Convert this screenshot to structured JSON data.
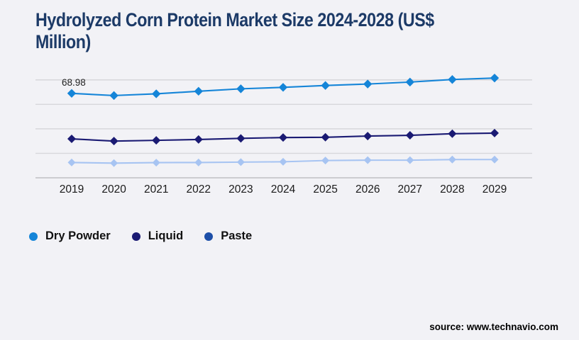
{
  "title": {
    "line1": "Hydrolyzed Corn Protein Market Size 2024-2028 (US$",
    "line2": "Million)"
  },
  "source": {
    "text": "source: www.technavio.com"
  },
  "colors": {
    "background": "#f2f2f6",
    "title": "#1c3a67",
    "gridline": "#d7d7db",
    "axis_line": "#bfbfc4",
    "tick_label": "#1a1a1a",
    "annotation": "#222222"
  },
  "chart_data": {
    "type": "line",
    "title": "Hydrolyzed Corn Protein Market Size 2024-2028 (US$ Million)",
    "unit": "US$ Million",
    "categories": [
      "2019",
      "2020",
      "2021",
      "2022",
      "2023",
      "2024",
      "2025",
      "2026",
      "2027",
      "2028",
      "2029"
    ],
    "ylim": [
      0,
      80
    ],
    "gridline_values": [
      0,
      20,
      40,
      60,
      80
    ],
    "grid_on": true,
    "legend_position": "bottom-left",
    "marker": "diamond",
    "series": [
      {
        "name": "Dry Powder",
        "color": "#1585d8",
        "legend_color": "#1585d8",
        "values": [
          68.98,
          67.2,
          68.6,
          70.7,
          72.7,
          73.9,
          75.4,
          76.6,
          78.2,
          80.3,
          81.5
        ]
      },
      {
        "name": "Liquid",
        "color": "#1a1a73",
        "legend_color": "#1a1a73",
        "values": [
          31.8,
          30.0,
          30.6,
          31.3,
          32.2,
          32.9,
          33.1,
          34.1,
          34.7,
          36.0,
          36.5
        ]
      },
      {
        "name": "Paste",
        "color": "#a7c4f2",
        "legend_color": "#1d4fa8",
        "values": [
          12.5,
          12.0,
          12.4,
          12.5,
          12.8,
          13.1,
          14.1,
          14.4,
          14.4,
          14.9,
          14.9
        ]
      }
    ],
    "annotations": [
      {
        "series_index": 0,
        "category_index": 0,
        "label": "68.98"
      }
    ]
  }
}
